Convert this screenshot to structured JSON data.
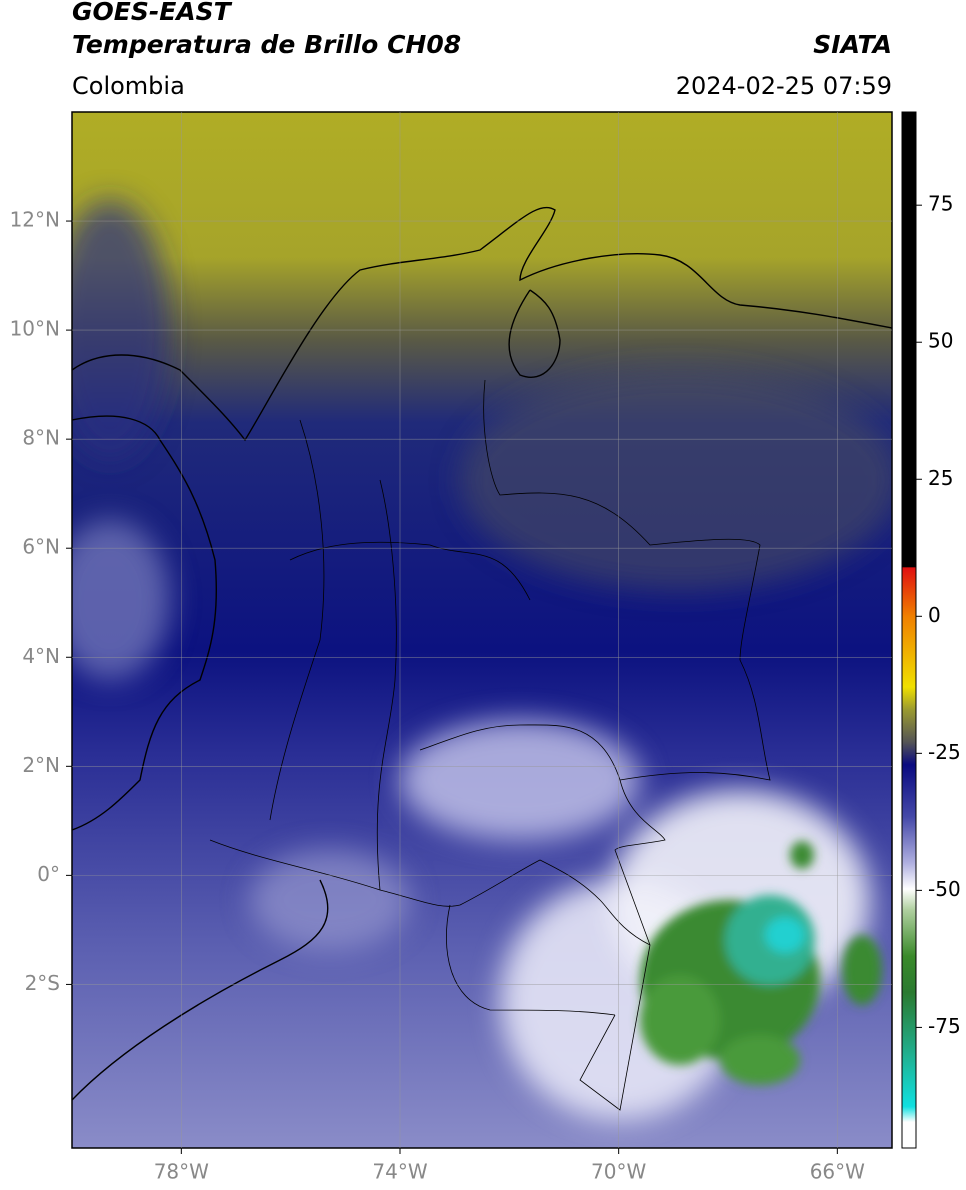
{
  "header": {
    "title": "GOES-EAST",
    "subtitle": "Temperatura de Brillo CH08",
    "source": "SIATA",
    "region": "Colombia",
    "datetime": "2024-02-25 07:59"
  },
  "map": {
    "lon_range": [
      -80,
      -65
    ],
    "lat_range": [
      -5,
      14
    ],
    "lon_ticks": [
      {
        "value": -78,
        "label": "78°W"
      },
      {
        "value": -74,
        "label": "74°W"
      },
      {
        "value": -70,
        "label": "70°W"
      },
      {
        "value": -66,
        "label": "66°W"
      }
    ],
    "lat_ticks": [
      {
        "value": 12,
        "label": "12°N"
      },
      {
        "value": 10,
        "label": "10°N"
      },
      {
        "value": 8,
        "label": "8°N"
      },
      {
        "value": 6,
        "label": "6°N"
      },
      {
        "value": 4,
        "label": "4°N"
      },
      {
        "value": 2,
        "label": "2°N"
      },
      {
        "value": 0,
        "label": "0°"
      },
      {
        "value": -2,
        "label": "2°S"
      }
    ]
  },
  "colorbar": {
    "range": [
      -97,
      92
    ],
    "ticks": [
      75,
      50,
      25,
      0,
      -25,
      -50,
      -75
    ]
  }
}
